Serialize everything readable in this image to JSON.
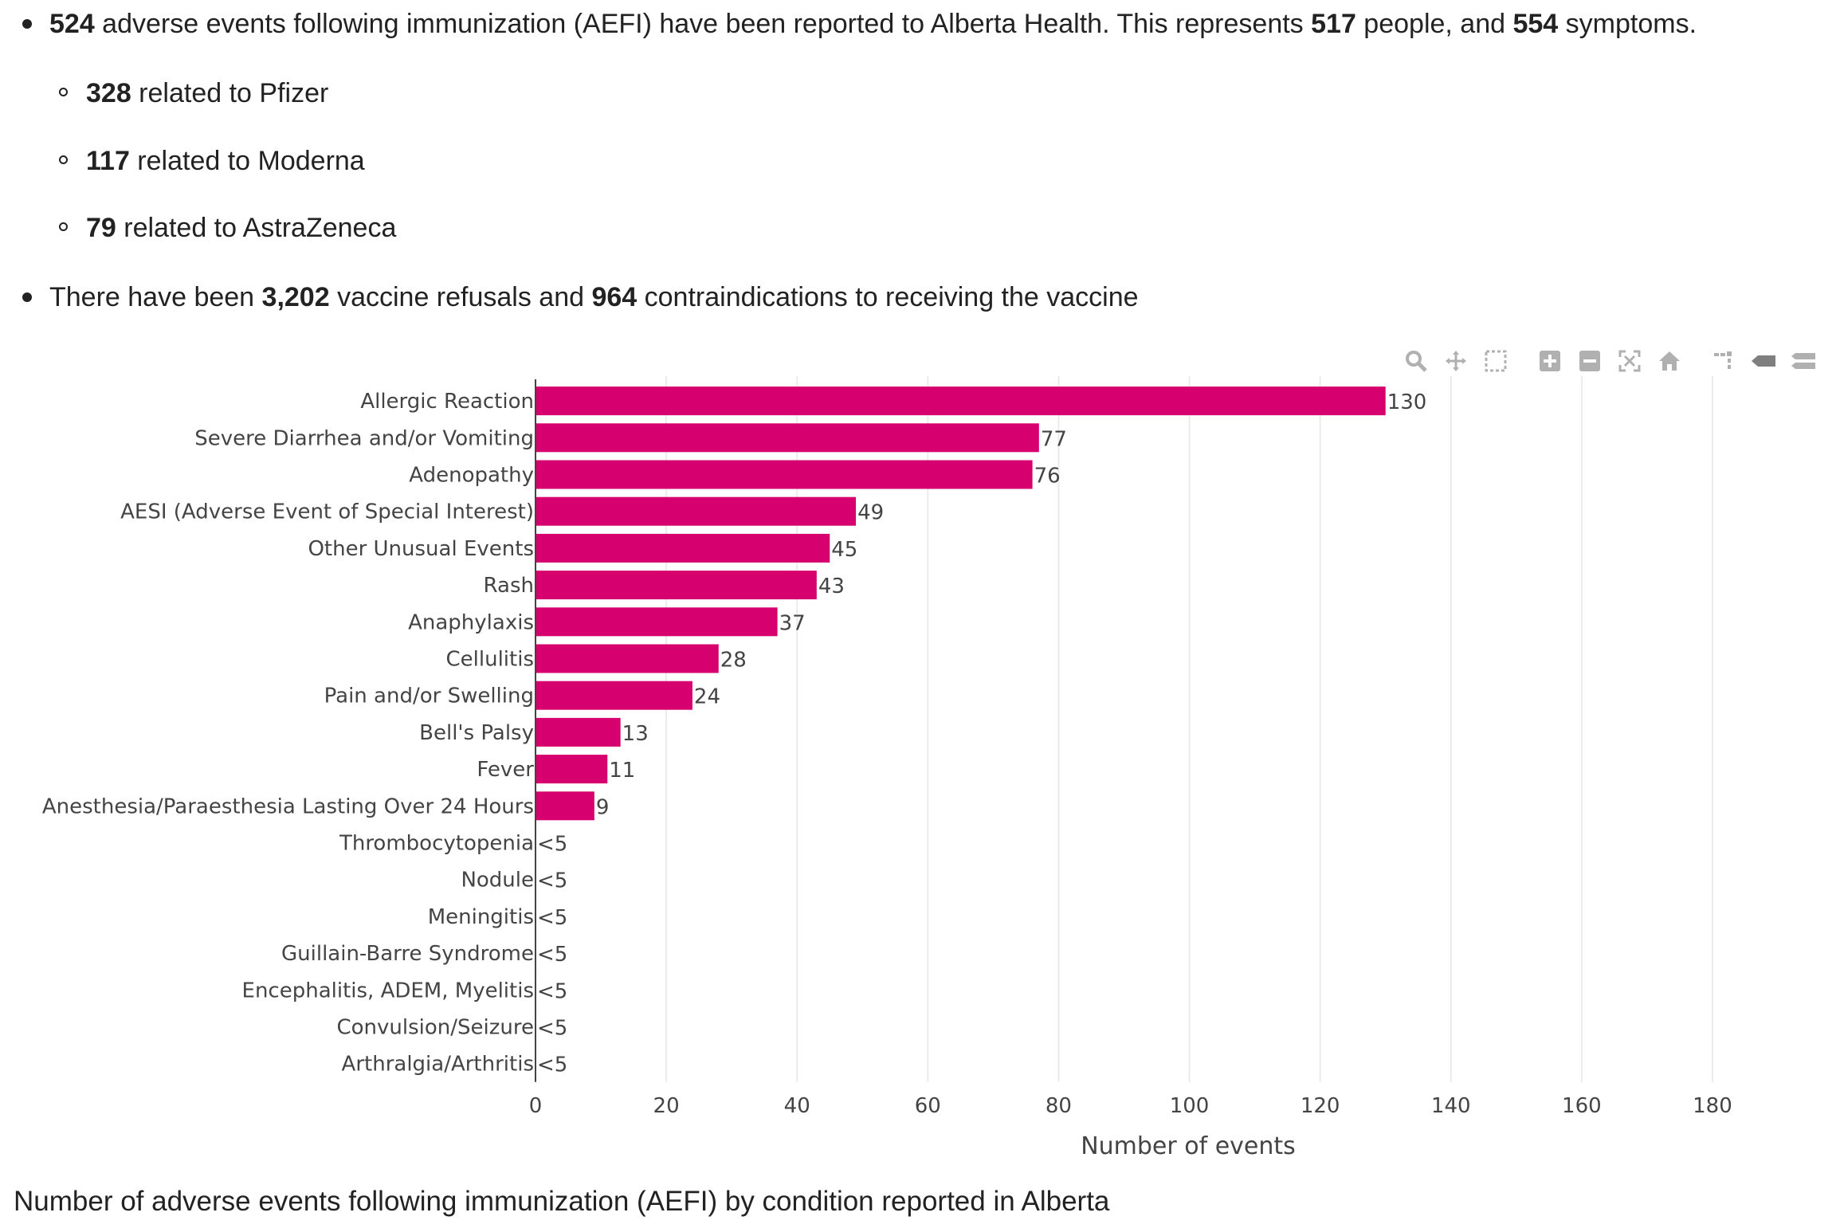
{
  "summary": {
    "line1": {
      "n_aefi": "524",
      "text_a": " adverse events following immunization (AEFI) have been reported to Alberta Health. This represents ",
      "n_people": "517",
      "text_b": " people, and ",
      "n_symptoms": "554",
      "text_c": " symptoms."
    },
    "sub": [
      {
        "count": "328",
        "text": " related to Pfizer"
      },
      {
        "count": "117",
        "text": " related to Moderna"
      },
      {
        "count": "79",
        "text": " related to AstraZeneca"
      }
    ],
    "line2": {
      "text_a": "There have been ",
      "n_refusals": "3,202",
      "text_b": " vaccine refusals and ",
      "n_contra": "964",
      "text_c": " contraindications to receiving the vaccine"
    }
  },
  "chart_data": {
    "type": "bar",
    "orientation": "horizontal",
    "categories": [
      "Allergic Reaction",
      "Severe Diarrhea and/or Vomiting",
      "Adenopathy",
      "AESI (Adverse Event of Special Interest)",
      "Other Unusual Events",
      "Rash",
      "Anaphylaxis",
      "Cellulitis",
      "Pain and/or Swelling",
      "Bell's Palsy",
      "Fever",
      "Anesthesia/Paraesthesia Lasting Over 24 Hours",
      "Thrombocytopenia",
      "Nodule",
      "Meningitis",
      "Guillain-Barre Syndrome",
      "Encephalitis, ADEM, Myelitis",
      "Convulsion/Seizure",
      "Arthralgia/Arthritis"
    ],
    "values": [
      130,
      77,
      76,
      49,
      45,
      43,
      37,
      28,
      24,
      13,
      11,
      9,
      null,
      null,
      null,
      null,
      null,
      null,
      null
    ],
    "data_labels": [
      "130",
      "77",
      "76",
      "49",
      "45",
      "43",
      "37",
      "28",
      "24",
      "13",
      "11",
      "9",
      "<5",
      "<5",
      "<5",
      "<5",
      "<5",
      "<5",
      "<5"
    ],
    "xlabel": "Number of events",
    "ylabel": "",
    "xlim": [
      0,
      185
    ],
    "xticks": [
      0,
      20,
      40,
      60,
      80,
      100,
      120,
      140,
      160,
      180
    ],
    "grid": "vertical gridlines",
    "bar_color": "#d6006f"
  },
  "caption": "Number of adverse events following immunization (AEFI) by condition reported in Alberta",
  "modebar": [
    {
      "name": "zoom-icon"
    },
    {
      "name": "pan-icon"
    },
    {
      "name": "box-select-icon"
    },
    {
      "name": "zoom-in-icon"
    },
    {
      "name": "zoom-out-icon"
    },
    {
      "name": "autoscale-icon"
    },
    {
      "name": "home-icon"
    },
    {
      "name": "spike-lines-icon"
    },
    {
      "name": "hover-closest-icon"
    },
    {
      "name": "hover-compare-icon"
    }
  ]
}
